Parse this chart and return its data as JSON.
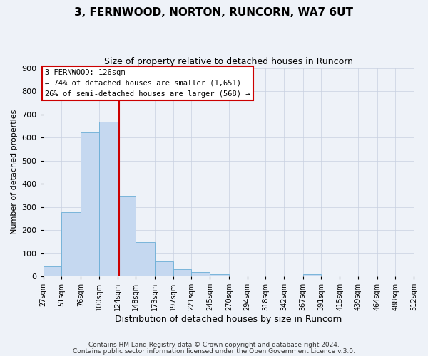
{
  "title": "3, FERNWOOD, NORTON, RUNCORN, WA7 6UT",
  "subtitle": "Size of property relative to detached houses in Runcorn",
  "xlabel": "Distribution of detached houses by size in Runcorn",
  "ylabel": "Number of detached properties",
  "bin_labels": [
    "27sqm",
    "51sqm",
    "76sqm",
    "100sqm",
    "124sqm",
    "148sqm",
    "173sqm",
    "197sqm",
    "221sqm",
    "245sqm",
    "270sqm",
    "294sqm",
    "318sqm",
    "342sqm",
    "367sqm",
    "391sqm",
    "415sqm",
    "439sqm",
    "464sqm",
    "488sqm",
    "512sqm"
  ],
  "bin_edges": [
    27,
    51,
    76,
    100,
    124,
    148,
    173,
    197,
    221,
    245,
    270,
    294,
    318,
    342,
    367,
    391,
    415,
    439,
    464,
    488,
    512
  ],
  "bar_heights": [
    44,
    278,
    621,
    668,
    347,
    148,
    65,
    31,
    19,
    10,
    0,
    0,
    0,
    0,
    8,
    0,
    0,
    0,
    0,
    0
  ],
  "bar_color": "#c5d8f0",
  "bar_edge_color": "#6aaed6",
  "property_size": 126,
  "vline_color": "#cc0000",
  "annotation_title": "3 FERNWOOD: 126sqm",
  "annotation_line1": "← 74% of detached houses are smaller (1,651)",
  "annotation_line2": "26% of semi-detached houses are larger (568) →",
  "annotation_box_edge": "#cc0000",
  "ylim": [
    0,
    900
  ],
  "yticks": [
    0,
    100,
    200,
    300,
    400,
    500,
    600,
    700,
    800,
    900
  ],
  "background_color": "#eef2f8",
  "footer_line1": "Contains HM Land Registry data © Crown copyright and database right 2024.",
  "footer_line2": "Contains public sector information licensed under the Open Government Licence v.3.0."
}
